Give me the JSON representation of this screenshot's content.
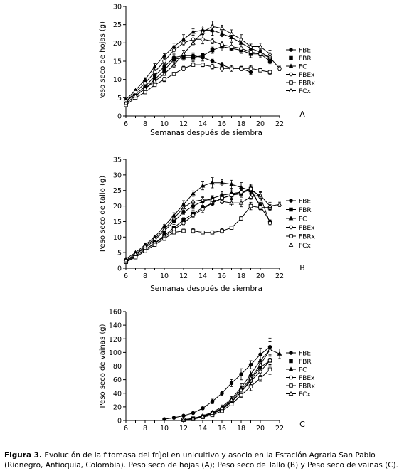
{
  "caption": {
    "label": "Figura 3.",
    "text": "Evolución de la fitomasa del fríjol en unicultivo y asocio en la Estación Agraria San Pablo (Rionegro, Antioquia, Colombia). Peso seco de hojas (A); Peso seco de Tallo (B) y Peso seco de vainas (C)."
  },
  "chart_data": [
    {
      "type": "line",
      "panel_label": "A",
      "xlabel": "Semanas después de siembra",
      "ylabel": "Peso seco de hojas (g)",
      "xlim": [
        6,
        22
      ],
      "ylim": [
        0,
        30
      ],
      "xticks": [
        6,
        8,
        10,
        12,
        14,
        16,
        18,
        20,
        22
      ],
      "yticks": [
        0,
        5,
        10,
        15,
        20,
        25,
        30
      ],
      "legend_position": "right",
      "series": [
        {
          "name": "FBE",
          "marker": "circle-filled",
          "x": [
            6,
            7,
            8,
            9,
            10,
            11,
            12,
            13,
            14,
            15,
            16,
            17,
            18,
            19
          ],
          "y": [
            4.0,
            6.0,
            8.0,
            11.0,
            13.5,
            16.0,
            16.5,
            16.5,
            16.0,
            15.0,
            14.0,
            13.0,
            13.0,
            12.0
          ]
        },
        {
          "name": "FBR",
          "marker": "square-filled",
          "x": [
            6,
            7,
            8,
            9,
            10,
            11,
            12,
            13,
            14,
            15,
            16,
            17,
            18,
            19,
            20,
            21
          ],
          "y": [
            3.5,
            5.5,
            7.5,
            10.0,
            12.5,
            15.5,
            16.0,
            16.0,
            16.5,
            18.0,
            19.0,
            18.5,
            18.0,
            17.0,
            17.0,
            15.0
          ]
        },
        {
          "name": "FC",
          "marker": "triangle-filled",
          "x": [
            6,
            7,
            8,
            9,
            10,
            11,
            12,
            13,
            14,
            15,
            16,
            17,
            18,
            19,
            20,
            21
          ],
          "y": [
            4.5,
            7.0,
            10.0,
            13.5,
            16.5,
            19.0,
            21.0,
            23.0,
            23.5,
            23.5,
            22.5,
            21.5,
            20.0,
            18.5,
            17.5,
            16.0
          ]
        },
        {
          "name": "FBEx",
          "marker": "circle-open",
          "x": [
            6,
            7,
            8,
            9,
            10,
            11,
            12,
            13,
            14,
            15,
            16,
            17,
            18,
            19,
            20,
            21,
            22
          ],
          "y": [
            4.0,
            6.5,
            9.0,
            12.0,
            15.0,
            18.0,
            20.0,
            21.0,
            21.0,
            20.5,
            19.5,
            19.0,
            18.5,
            17.5,
            17.0,
            16.0,
            13.0
          ]
        },
        {
          "name": "FBRx",
          "marker": "square-open",
          "x": [
            6,
            7,
            8,
            9,
            10,
            11,
            12,
            13,
            14,
            15,
            16,
            17,
            18,
            19,
            20,
            21
          ],
          "y": [
            3.0,
            5.0,
            6.5,
            8.5,
            10.0,
            11.5,
            13.0,
            14.0,
            14.0,
            13.5,
            13.0,
            13.0,
            13.0,
            13.0,
            12.5,
            12.0
          ]
        },
        {
          "name": "FCx",
          "marker": "triangle-open",
          "x": [
            6,
            7,
            8,
            9,
            10,
            11,
            12,
            13,
            14,
            15,
            16,
            17,
            18,
            19,
            20,
            21
          ],
          "y": [
            3.5,
            5.5,
            7.5,
            9.5,
            11.5,
            14.0,
            17.0,
            20.0,
            23.0,
            24.5,
            24.0,
            22.5,
            21.0,
            19.0,
            19.0,
            17.0
          ]
        }
      ]
    },
    {
      "type": "line",
      "panel_label": "B",
      "xlabel": "Semanas después de siembra",
      "ylabel": "Peso seco de tallo (g)",
      "xlim": [
        6,
        22
      ],
      "ylim": [
        0,
        35
      ],
      "xticks": [
        6,
        8,
        10,
        12,
        14,
        16,
        18,
        20,
        22
      ],
      "yticks": [
        0,
        5,
        10,
        15,
        20,
        25,
        30,
        35
      ],
      "legend_position": "right",
      "series": [
        {
          "name": "FBE",
          "marker": "circle-filled",
          "x": [
            6,
            7,
            8,
            9,
            10,
            11,
            12,
            13,
            14,
            15,
            16,
            17,
            18,
            19,
            20,
            21
          ],
          "y": [
            2.5,
            4.5,
            6.5,
            9.0,
            12.0,
            15.0,
            18.0,
            20.0,
            21.5,
            22.5,
            23.5,
            24.0,
            24.5,
            25.0,
            20.0,
            15.0
          ]
        },
        {
          "name": "FBR",
          "marker": "square-filled",
          "x": [
            6,
            7,
            8,
            9,
            10,
            11,
            12,
            13,
            14,
            15,
            16,
            17,
            18,
            19,
            20
          ],
          "y": [
            2.0,
            4.0,
            6.0,
            8.0,
            10.5,
            13.0,
            15.5,
            17.5,
            19.5,
            21.0,
            22.5,
            23.5,
            24.0,
            25.5,
            20.0
          ]
        },
        {
          "name": "FC",
          "marker": "triangle-filled",
          "x": [
            6,
            7,
            8,
            9,
            10,
            11,
            12,
            13,
            14,
            15,
            16,
            17,
            18,
            19,
            20
          ],
          "y": [
            3.0,
            5.0,
            7.5,
            10.0,
            13.5,
            17.0,
            20.5,
            24.0,
            26.5,
            27.5,
            27.5,
            27.0,
            26.0,
            25.0,
            23.5
          ]
        },
        {
          "name": "FBEx",
          "marker": "circle-open",
          "x": [
            6,
            7,
            8,
            9,
            10,
            11,
            12,
            13,
            14,
            15,
            16,
            17,
            18,
            19,
            20,
            21
          ],
          "y": [
            2.5,
            4.0,
            6.0,
            8.0,
            10.0,
            12.5,
            14.5,
            17.0,
            19.0,
            21.0,
            22.5,
            23.5,
            24.5,
            25.5,
            23.0,
            14.5
          ]
        },
        {
          "name": "FBRx",
          "marker": "square-open",
          "x": [
            6,
            7,
            8,
            9,
            10,
            11,
            12,
            13,
            14,
            15,
            16,
            17,
            18,
            19,
            20,
            21
          ],
          "y": [
            2.0,
            3.5,
            5.5,
            7.5,
            9.5,
            11.5,
            12.0,
            12.0,
            11.5,
            11.5,
            12.0,
            13.0,
            16.0,
            20.0,
            19.5,
            19.5
          ]
        },
        {
          "name": "FCx",
          "marker": "triangle-open",
          "x": [
            6,
            7,
            8,
            9,
            10,
            11,
            12,
            13,
            14,
            15,
            16,
            17,
            18,
            19,
            20,
            21,
            22
          ],
          "y": [
            2.5,
            4.5,
            7.0,
            9.5,
            12.5,
            16.0,
            19.5,
            21.5,
            22.0,
            22.0,
            21.5,
            21.0,
            21.0,
            23.0,
            23.5,
            20.0,
            20.5
          ]
        }
      ]
    },
    {
      "type": "line",
      "panel_label": "C",
      "xlabel": "",
      "ylabel": "Peso seco de vainas (g)",
      "xlim": [
        6,
        22
      ],
      "ylim": [
        0,
        160
      ],
      "xticks": [
        6,
        8,
        10,
        12,
        14,
        16,
        18,
        20,
        22
      ],
      "yticks": [
        0,
        20,
        40,
        60,
        80,
        100,
        120,
        140,
        160
      ],
      "legend_position": "right",
      "series": [
        {
          "name": "FBE",
          "marker": "circle-filled",
          "x": [
            10,
            11,
            12,
            13,
            14,
            15,
            16,
            17,
            18,
            19,
            20,
            21
          ],
          "y": [
            2,
            4,
            7,
            11,
            18,
            28,
            40,
            55,
            68,
            82,
            97,
            108
          ]
        },
        {
          "name": "FBR",
          "marker": "square-filled",
          "x": [
            12,
            13,
            14,
            15,
            16,
            17,
            18,
            19,
            20,
            21
          ],
          "y": [
            1,
            3,
            6,
            10,
            16,
            27,
            42,
            60,
            78,
            88
          ]
        },
        {
          "name": "FC",
          "marker": "triangle-filled",
          "x": [
            12,
            13,
            14,
            15,
            16,
            17,
            18,
            19,
            20,
            21,
            22
          ],
          "y": [
            1,
            3,
            7,
            12,
            20,
            32,
            48,
            68,
            88,
            104,
            98
          ]
        },
        {
          "name": "FBEx",
          "marker": "circle-open",
          "x": [
            12,
            13,
            14,
            15,
            16,
            17,
            18,
            19,
            20,
            21
          ],
          "y": [
            1,
            3,
            6,
            10,
            17,
            28,
            42,
            58,
            72,
            88
          ]
        },
        {
          "name": "FBRx",
          "marker": "square-open",
          "x": [
            12,
            13,
            14,
            15,
            16,
            17,
            18,
            19,
            20,
            21
          ],
          "y": [
            1,
            2,
            5,
            8,
            14,
            24,
            37,
            50,
            62,
            75
          ]
        },
        {
          "name": "FCx",
          "marker": "triangle-open",
          "x": [
            12,
            13,
            14,
            15,
            16,
            17,
            18,
            19,
            20,
            21
          ],
          "y": [
            1,
            3,
            6,
            11,
            18,
            30,
            45,
            62,
            82,
            104
          ]
        }
      ]
    }
  ]
}
